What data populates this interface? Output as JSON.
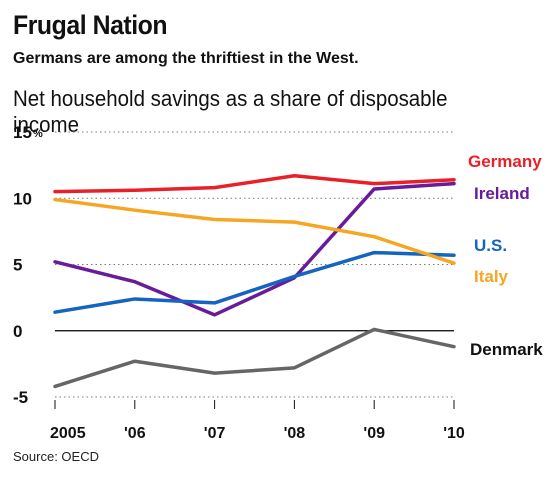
{
  "header": {
    "title": "Frugal Nation",
    "subtitle": "Germans are among the thriftiest in the West.",
    "caption": "Net household savings as a share of disposable income"
  },
  "source": "Source: OECD",
  "chart_data": {
    "type": "line",
    "title": "Frugal Nation",
    "subtitle": "Germans are among the thriftiest in the West.",
    "ylabel": "Net household savings as a share of disposable income",
    "x": [
      "2005",
      "'06",
      "'07",
      "'08",
      "'09",
      "'10"
    ],
    "ylim": [
      -5,
      15
    ],
    "yticks": [
      {
        "value": 15,
        "label": "15",
        "suffix": "%"
      },
      {
        "value": 10,
        "label": "10",
        "suffix": ""
      },
      {
        "value": 5,
        "label": "5",
        "suffix": ""
      },
      {
        "value": 0,
        "label": "0",
        "suffix": ""
      },
      {
        "value": -5,
        "label": "-5",
        "suffix": ""
      }
    ],
    "grid": "dotted horizontal",
    "legend": "direct labels at right",
    "series": [
      {
        "name": "Germany",
        "color": "#e8202a",
        "values": [
          10.5,
          10.6,
          10.8,
          11.7,
          11.1,
          11.4
        ]
      },
      {
        "name": "Ireland",
        "color": "#6a1b9a",
        "values": [
          5.2,
          3.7,
          1.2,
          4.0,
          10.7,
          11.1
        ]
      },
      {
        "name": "U.S.",
        "color": "#1565c0",
        "values": [
          1.4,
          2.4,
          2.1,
          4.1,
          5.9,
          5.7
        ]
      },
      {
        "name": "Italy",
        "color": "#f5a623",
        "values": [
          9.9,
          9.1,
          8.4,
          8.2,
          7.1,
          5.1
        ]
      },
      {
        "name": "Denmark",
        "color": "#666666",
        "values": [
          -4.2,
          -2.3,
          -3.2,
          -2.8,
          0.1,
          -1.2
        ]
      }
    ]
  }
}
